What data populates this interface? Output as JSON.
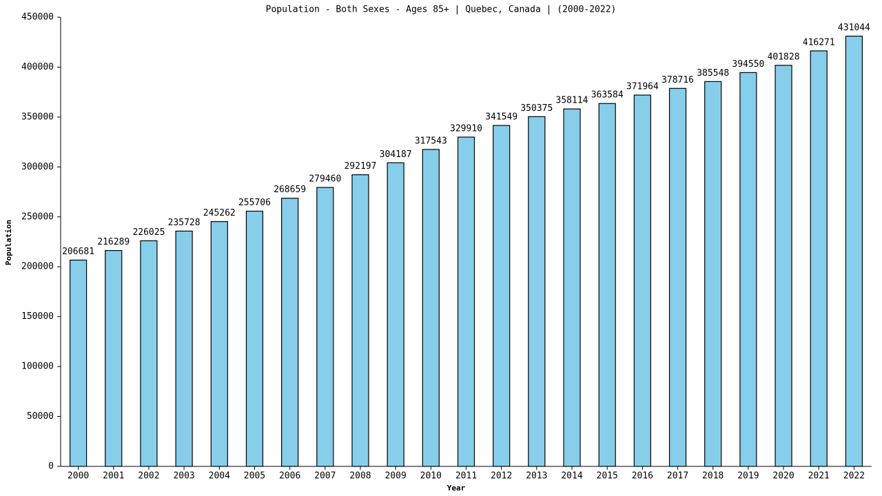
{
  "chart_data": {
    "type": "bar",
    "title": "Population - Both Sexes - Ages 85+ | Quebec, Canada |  (2000-2022)",
    "x_label": "Year",
    "y_label": "Population",
    "categories": [
      "2000",
      "2001",
      "2002",
      "2003",
      "2004",
      "2005",
      "2006",
      "2007",
      "2008",
      "2009",
      "2010",
      "2011",
      "2012",
      "2013",
      "2014",
      "2015",
      "2016",
      "2017",
      "2018",
      "2019",
      "2020",
      "2021",
      "2022"
    ],
    "values": [
      206681,
      216289,
      226025,
      235728,
      245262,
      255706,
      268659,
      279460,
      292197,
      304187,
      317543,
      329910,
      341549,
      350375,
      358114,
      363584,
      371964,
      378716,
      385548,
      394550,
      401828,
      416271,
      431044
    ],
    "color": "#87ceeb",
    "ylim": [
      0,
      450000
    ],
    "yticks": [
      0,
      50000,
      100000,
      150000,
      200000,
      250000,
      300000,
      350000,
      400000,
      450000
    ]
  }
}
